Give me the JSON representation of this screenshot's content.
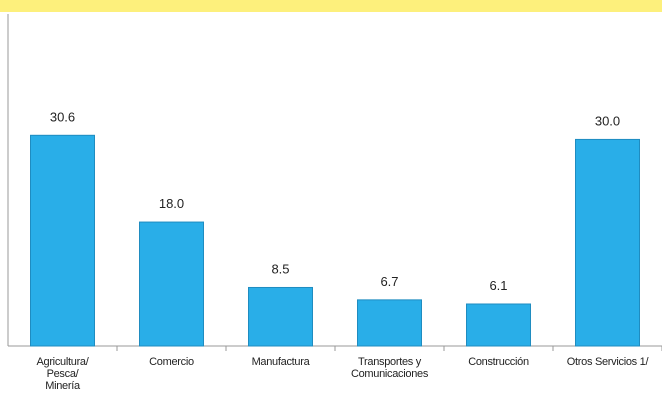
{
  "chart_data": {
    "type": "bar",
    "categories": [
      "Agricultura/\nPesca/\nMinería",
      "Comercio",
      "Manufactura",
      "Transportes y\nComunicaciones",
      "Construcción",
      "Otros Servicios 1/"
    ],
    "values": [
      30.6,
      18.0,
      8.5,
      6.7,
      6.1,
      30.0
    ],
    "value_labels": [
      "30.6",
      "18.0",
      "8.5",
      "6.7",
      "6.1",
      "30.0"
    ],
    "color": "#29aee8",
    "ylim": [
      0,
      35
    ]
  }
}
